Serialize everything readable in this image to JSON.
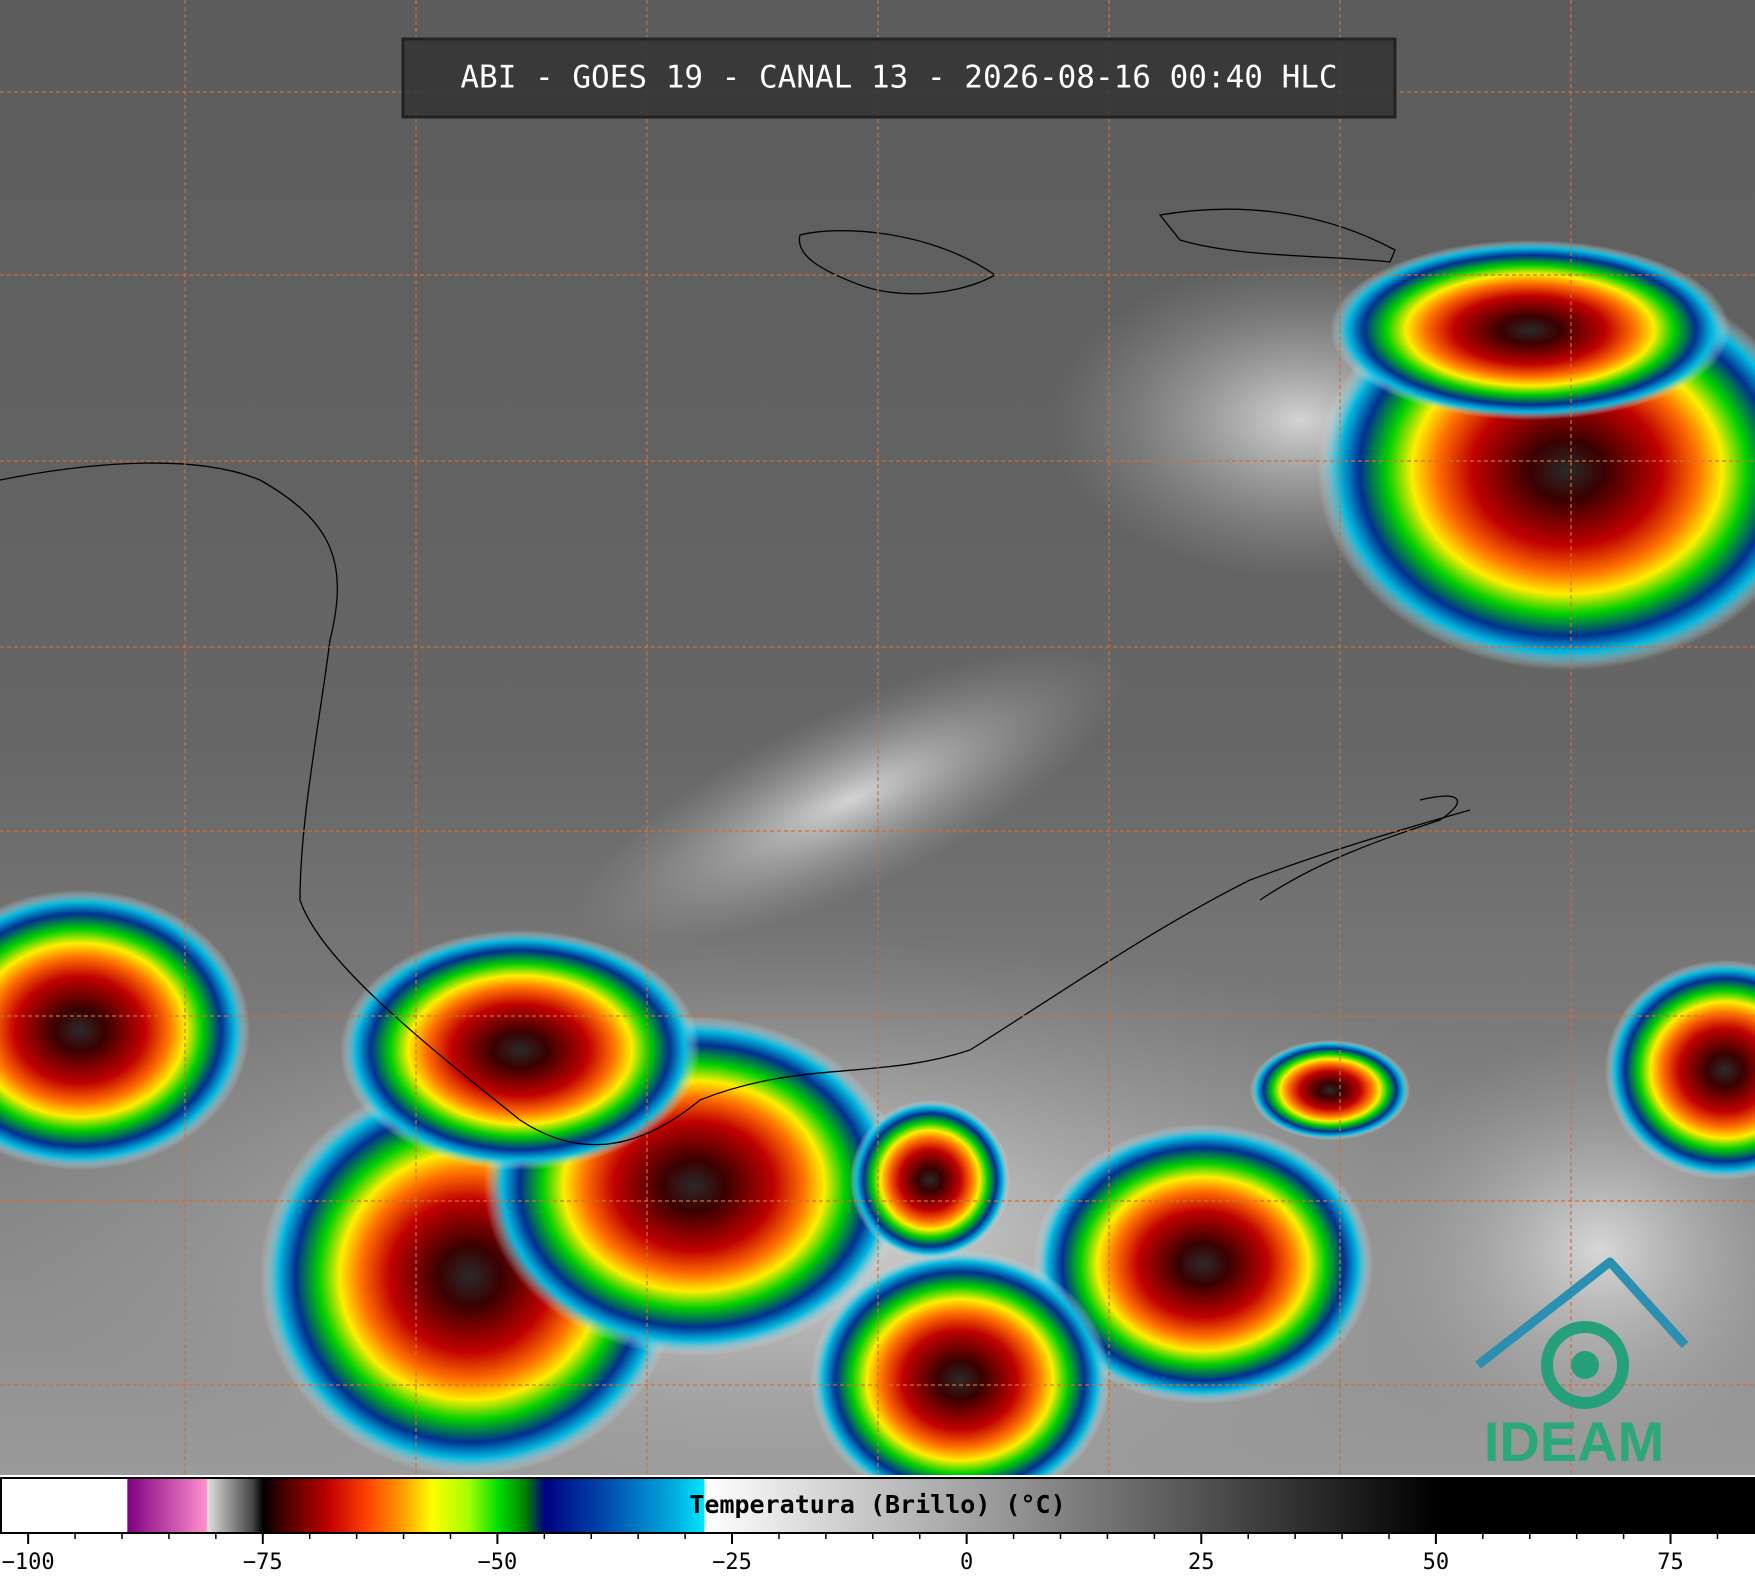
{
  "header": {
    "title": "ABI - GOES 19 - CANAL 13 - 2026-08-16 00:40 HLC"
  },
  "logo": {
    "text": "IDEAM"
  },
  "chart_data": {
    "type": "colorbar",
    "xlabel": "Temperatura (Brillo) (°C)",
    "xlim": [
      -103,
      84
    ],
    "xticks": [
      {
        "value": -100,
        "label": "−100"
      },
      {
        "value": -75,
        "label": "−75"
      },
      {
        "value": -50,
        "label": "−50"
      },
      {
        "value": -25,
        "label": "−25"
      },
      0,
      25,
      50,
      75
    ],
    "minor_xticks": [
      -95,
      -90,
      -85,
      -80,
      -70,
      -65,
      -60,
      -55,
      -45,
      -40,
      -35,
      -30,
      -20,
      -15,
      -10,
      -5,
      5,
      10,
      15,
      20,
      30,
      35,
      40,
      45,
      55,
      60,
      65,
      70,
      80
    ],
    "colorscale": [
      {
        "value": -103,
        "color": "#ffffff"
      },
      {
        "value": -89.5,
        "color": "#ffffff"
      },
      {
        "value": -89.4,
        "color": "#800080"
      },
      {
        "value": -81,
        "color": "#ff90d0"
      },
      {
        "value": -80.9,
        "color": "#e0e0e0"
      },
      {
        "value": -76,
        "color": "#404040"
      },
      {
        "value": -75,
        "color": "#000000"
      },
      {
        "value": -73,
        "color": "#400000"
      },
      {
        "value": -68,
        "color": "#c00000"
      },
      {
        "value": -64,
        "color": "#ff4000"
      },
      {
        "value": -60,
        "color": "#ffa000"
      },
      {
        "value": -57,
        "color": "#ffff00"
      },
      {
        "value": -53,
        "color": "#a0ff00"
      },
      {
        "value": -50,
        "color": "#00e000"
      },
      {
        "value": -47,
        "color": "#008000"
      },
      {
        "value": -45,
        "color": "#000080"
      },
      {
        "value": -38,
        "color": "#0050b0"
      },
      {
        "value": -31,
        "color": "#00b0e0"
      },
      {
        "value": -28,
        "color": "#00e5ff"
      },
      {
        "value": -27.9,
        "color": "#ffffff"
      },
      {
        "value": 50,
        "color": "#000000"
      },
      {
        "value": 84,
        "color": "#000000"
      }
    ]
  }
}
